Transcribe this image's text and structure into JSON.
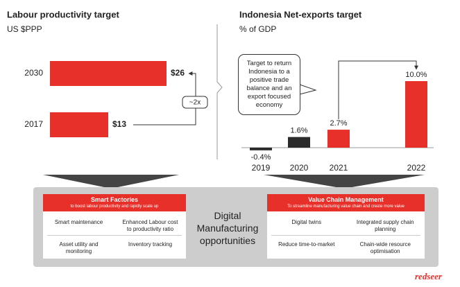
{
  "chart_data": [
    {
      "type": "hbar",
      "title": "Labour productivity target",
      "subtitle": "US $PPP",
      "categories": [
        "2030",
        "2017"
      ],
      "values": [
        26,
        13
      ],
      "value_labels": [
        "$26",
        "$13"
      ],
      "color": "#e8302a",
      "annotation": "~2x"
    },
    {
      "type": "bar",
      "title": "Indonesia Net-exports target",
      "subtitle": "% of GDP",
      "categories": [
        "2019",
        "2020",
        "2021",
        "2022"
      ],
      "values": [
        -0.4,
        1.6,
        2.7,
        10.0
      ],
      "value_labels": [
        "-0.4%",
        "1.6%",
        "2.7%",
        "10.0%"
      ],
      "colors": [
        "#2b2b2b",
        "#2b2b2b",
        "#e8302a",
        "#e8302a"
      ],
      "annotation": "Target to return Indonesia to a positive trade balance and an export focused economy"
    }
  ],
  "diagram": {
    "center": "Digital Manufacturing opportunities",
    "panels": [
      {
        "title": "Smart Factories",
        "subtitle": "to boost labour productivity and rapidly scale up",
        "items": [
          "Smart maintenance",
          "Enhanced Labour cost to productivity ratio",
          "Asset utility and monitoring",
          "Inventory tracking"
        ]
      },
      {
        "title": "Value Chain Management",
        "subtitle": "To streamline manufacturing value chain and create more value",
        "items": [
          "Digital twins",
          "Integrated supply chain planning",
          "Reduce time-to-market",
          "Chain-wide resource optimisation"
        ]
      }
    ]
  },
  "logo": "redseer"
}
